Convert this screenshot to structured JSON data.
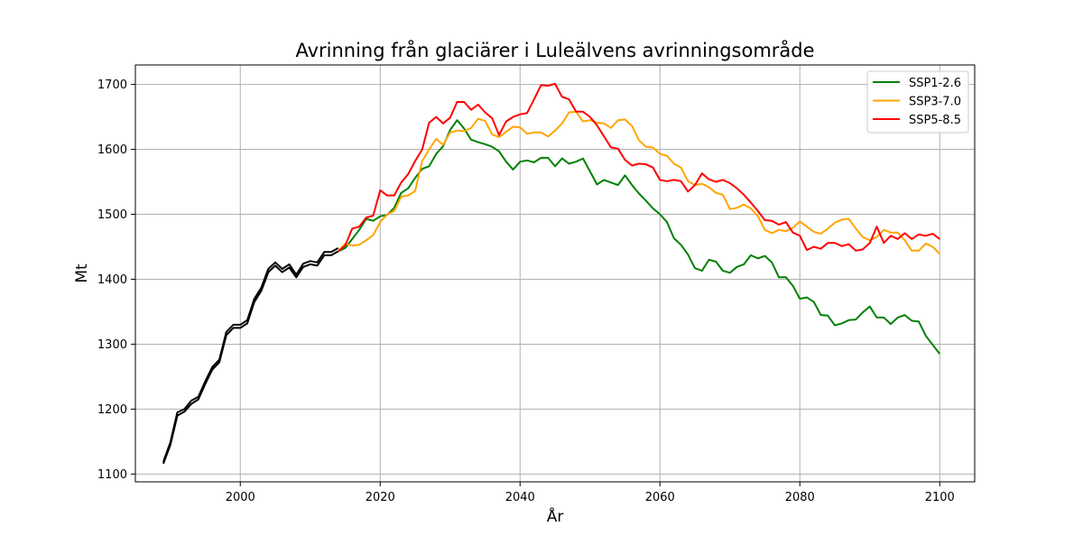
{
  "chart_data": {
    "type": "line",
    "title": "Avrinning från glaciärer i Luleälvens avrinningsområde",
    "xlabel": "År",
    "ylabel": "Mt",
    "xlim": [
      1985,
      2105
    ],
    "ylim": [
      1088,
      1730
    ],
    "xticks": [
      2000,
      2020,
      2040,
      2060,
      2080,
      2100
    ],
    "yticks": [
      1100,
      1200,
      1300,
      1400,
      1500,
      1600,
      1700
    ],
    "grid": true,
    "legend_position": "top-right",
    "historical": {
      "color": "#000000",
      "x": [
        1989,
        1990,
        1991,
        1992,
        1993,
        1994,
        1995,
        1996,
        1997,
        1998,
        1999,
        2000,
        2001,
        2002,
        2003,
        2004,
        2005,
        2006,
        2007,
        2008,
        2009,
        2010,
        2011,
        2012,
        2013,
        2014
      ],
      "lines": [
        [
          1119,
          1149,
          1195,
          1200,
          1213,
          1219,
          1243,
          1265,
          1276,
          1319,
          1330,
          1330,
          1337,
          1370,
          1387,
          1416,
          1426,
          1416,
          1423,
          1407,
          1424,
          1428,
          1426,
          1442,
          1442,
          1448
        ],
        [
          1116,
          1145,
          1190,
          1196,
          1208,
          1215,
          1239,
          1261,
          1272,
          1314,
          1325,
          1325,
          1332,
          1365,
          1382,
          1411,
          1421,
          1411,
          1418,
          1403,
          1419,
          1423,
          1421,
          1437,
          1437,
          1443
        ]
      ]
    },
    "series": [
      {
        "name": "SSP1-2.6",
        "color": "#008000",
        "x": [
          2014,
          2015,
          2016,
          2017,
          2018,
          2019,
          2020,
          2021,
          2022,
          2023,
          2024,
          2025,
          2026,
          2027,
          2028,
          2029,
          2030,
          2031,
          2032,
          2033,
          2034,
          2035,
          2036,
          2037,
          2038,
          2039,
          2040,
          2041,
          2042,
          2043,
          2044,
          2045,
          2046,
          2047,
          2048,
          2049,
          2050,
          2051,
          2052,
          2053,
          2054,
          2055,
          2056,
          2057,
          2058,
          2059,
          2060,
          2061,
          2062,
          2063,
          2064,
          2065,
          2066,
          2067,
          2068,
          2069,
          2070,
          2071,
          2072,
          2073,
          2074,
          2075,
          2076,
          2077,
          2078,
          2079,
          2080,
          2081,
          2082,
          2083,
          2084,
          2085,
          2086,
          2087,
          2088,
          2089,
          2090,
          2091,
          2092,
          2093,
          2094,
          2095,
          2096,
          2097,
          2098,
          2099,
          2100
        ],
        "values": [
          1443,
          1448,
          1462,
          1476,
          1493,
          1490,
          1497,
          1499,
          1510,
          1533,
          1540,
          1556,
          1570,
          1574,
          1593,
          1605,
          1630,
          1645,
          1632,
          1615,
          1611,
          1608,
          1604,
          1597,
          1581,
          1569,
          1581,
          1583,
          1580,
          1587,
          1587,
          1574,
          1586,
          1578,
          1581,
          1586,
          1566,
          1546,
          1553,
          1549,
          1545,
          1560,
          1545,
          1532,
          1521,
          1509,
          1500,
          1488,
          1463,
          1453,
          1438,
          1417,
          1413,
          1430,
          1427,
          1413,
          1410,
          1419,
          1423,
          1437,
          1432,
          1436,
          1426,
          1403,
          1403,
          1390,
          1370,
          1372,
          1365,
          1345,
          1344,
          1329,
          1332,
          1337,
          1338,
          1349,
          1358,
          1341,
          1341,
          1331,
          1341,
          1345,
          1336,
          1335,
          1313,
          1299,
          1285
        ]
      },
      {
        "name": "SSP3-7.0",
        "color": "#FFA500",
        "x": [
          2014,
          2015,
          2016,
          2017,
          2018,
          2019,
          2020,
          2021,
          2022,
          2023,
          2024,
          2025,
          2026,
          2027,
          2028,
          2029,
          2030,
          2031,
          2032,
          2033,
          2034,
          2035,
          2036,
          2037,
          2038,
          2039,
          2040,
          2041,
          2042,
          2043,
          2044,
          2045,
          2046,
          2047,
          2048,
          2049,
          2050,
          2051,
          2052,
          2053,
          2054,
          2055,
          2056,
          2057,
          2058,
          2059,
          2060,
          2061,
          2062,
          2063,
          2064,
          2065,
          2066,
          2067,
          2068,
          2069,
          2070,
          2071,
          2072,
          2073,
          2074,
          2075,
          2076,
          2077,
          2078,
          2079,
          2080,
          2081,
          2082,
          2083,
          2084,
          2085,
          2086,
          2087,
          2088,
          2089,
          2090,
          2091,
          2092,
          2093,
          2094,
          2095,
          2096,
          2097,
          2098,
          2099,
          2100
        ],
        "values": [
          1443,
          1455,
          1452,
          1453,
          1460,
          1468,
          1488,
          1500,
          1505,
          1527,
          1529,
          1536,
          1582,
          1600,
          1616,
          1607,
          1626,
          1629,
          1628,
          1633,
          1647,
          1644,
          1623,
          1619,
          1627,
          1635,
          1634,
          1624,
          1626,
          1626,
          1620,
          1629,
          1640,
          1657,
          1658,
          1643,
          1645,
          1641,
          1640,
          1633,
          1645,
          1646,
          1636,
          1614,
          1604,
          1603,
          1593,
          1590,
          1578,
          1572,
          1551,
          1545,
          1547,
          1542,
          1533,
          1530,
          1508,
          1510,
          1515,
          1509,
          1497,
          1476,
          1471,
          1476,
          1474,
          1479,
          1489,
          1481,
          1473,
          1470,
          1478,
          1487,
          1492,
          1493,
          1478,
          1465,
          1460,
          1465,
          1476,
          1472,
          1472,
          1460,
          1444,
          1444,
          1455,
          1450,
          1439
        ]
      },
      {
        "name": "SSP5-8.5",
        "color": "#FF0000",
        "x": [
          2014,
          2015,
          2016,
          2017,
          2018,
          2019,
          2020,
          2021,
          2022,
          2023,
          2024,
          2025,
          2026,
          2027,
          2028,
          2029,
          2030,
          2031,
          2032,
          2033,
          2034,
          2035,
          2036,
          2037,
          2038,
          2039,
          2040,
          2041,
          2042,
          2043,
          2044,
          2045,
          2046,
          2047,
          2048,
          2049,
          2050,
          2051,
          2052,
          2053,
          2054,
          2055,
          2056,
          2057,
          2058,
          2059,
          2060,
          2061,
          2062,
          2063,
          2064,
          2065,
          2066,
          2067,
          2068,
          2069,
          2070,
          2071,
          2072,
          2073,
          2074,
          2075,
          2076,
          2077,
          2078,
          2079,
          2080,
          2081,
          2082,
          2083,
          2084,
          2085,
          2086,
          2087,
          2088,
          2089,
          2090,
          2091,
          2092,
          2093,
          2094,
          2095,
          2096,
          2097,
          2098,
          2099,
          2100
        ],
        "values": [
          1443,
          1452,
          1478,
          1481,
          1495,
          1498,
          1537,
          1529,
          1529,
          1549,
          1562,
          1582,
          1600,
          1641,
          1650,
          1640,
          1649,
          1673,
          1673,
          1661,
          1669,
          1657,
          1648,
          1622,
          1643,
          1650,
          1654,
          1656,
          1677,
          1699,
          1698,
          1701,
          1681,
          1677,
          1658,
          1658,
          1650,
          1637,
          1620,
          1603,
          1601,
          1584,
          1575,
          1578,
          1577,
          1572,
          1553,
          1551,
          1553,
          1551,
          1535,
          1545,
          1563,
          1554,
          1550,
          1553,
          1548,
          1540,
          1530,
          1518,
          1505,
          1491,
          1490,
          1484,
          1488,
          1472,
          1467,
          1445,
          1450,
          1447,
          1456,
          1456,
          1451,
          1454,
          1444,
          1446,
          1456,
          1481,
          1456,
          1467,
          1462,
          1471,
          1462,
          1469,
          1467,
          1470,
          1462
        ]
      }
    ]
  }
}
